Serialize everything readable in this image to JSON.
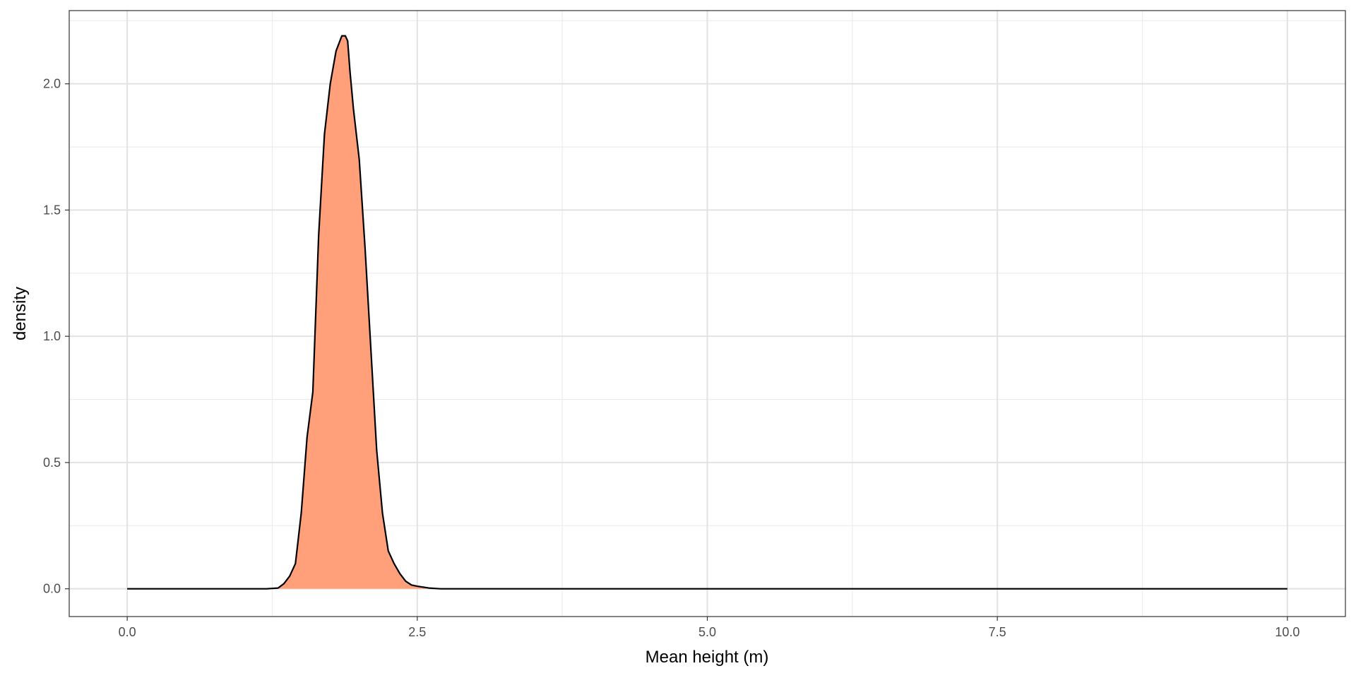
{
  "chart_data": {
    "type": "area",
    "xlabel": "Mean height (m)",
    "ylabel": "density",
    "xlim": [
      -0.5,
      10.5
    ],
    "ylim": [
      -0.11,
      2.29
    ],
    "x_ticks": [
      0.0,
      2.5,
      5.0,
      7.5,
      10.0
    ],
    "x_tick_labels": [
      "0.0",
      "2.5",
      "5.0",
      "7.5",
      "10.0"
    ],
    "y_ticks": [
      0.0,
      0.5,
      1.0,
      1.5,
      2.0
    ],
    "y_tick_labels": [
      "0.0",
      "0.5",
      "1.0",
      "1.5",
      "2.0"
    ],
    "grid": true,
    "fill_color": "#FFA07A",
    "line_color": "#000000",
    "series": [
      {
        "x": [
          0.0,
          1.2,
          1.3,
          1.35,
          1.4,
          1.45,
          1.5,
          1.55,
          1.6,
          1.65,
          1.7,
          1.75,
          1.8,
          1.85,
          1.88,
          1.9,
          1.92,
          1.95,
          2.0,
          2.05,
          2.1,
          2.15,
          2.2,
          2.25,
          2.3,
          2.35,
          2.4,
          2.45,
          2.5,
          2.6,
          2.7,
          10.0
        ],
        "y": [
          0.0,
          0.0,
          0.003,
          0.02,
          0.05,
          0.1,
          0.3,
          0.6,
          0.78,
          1.4,
          1.8,
          2.0,
          2.13,
          2.19,
          2.19,
          2.17,
          2.05,
          1.9,
          1.7,
          1.35,
          0.95,
          0.55,
          0.3,
          0.15,
          0.1,
          0.06,
          0.03,
          0.015,
          0.01,
          0.003,
          0.0,
          0.0
        ]
      }
    ]
  }
}
